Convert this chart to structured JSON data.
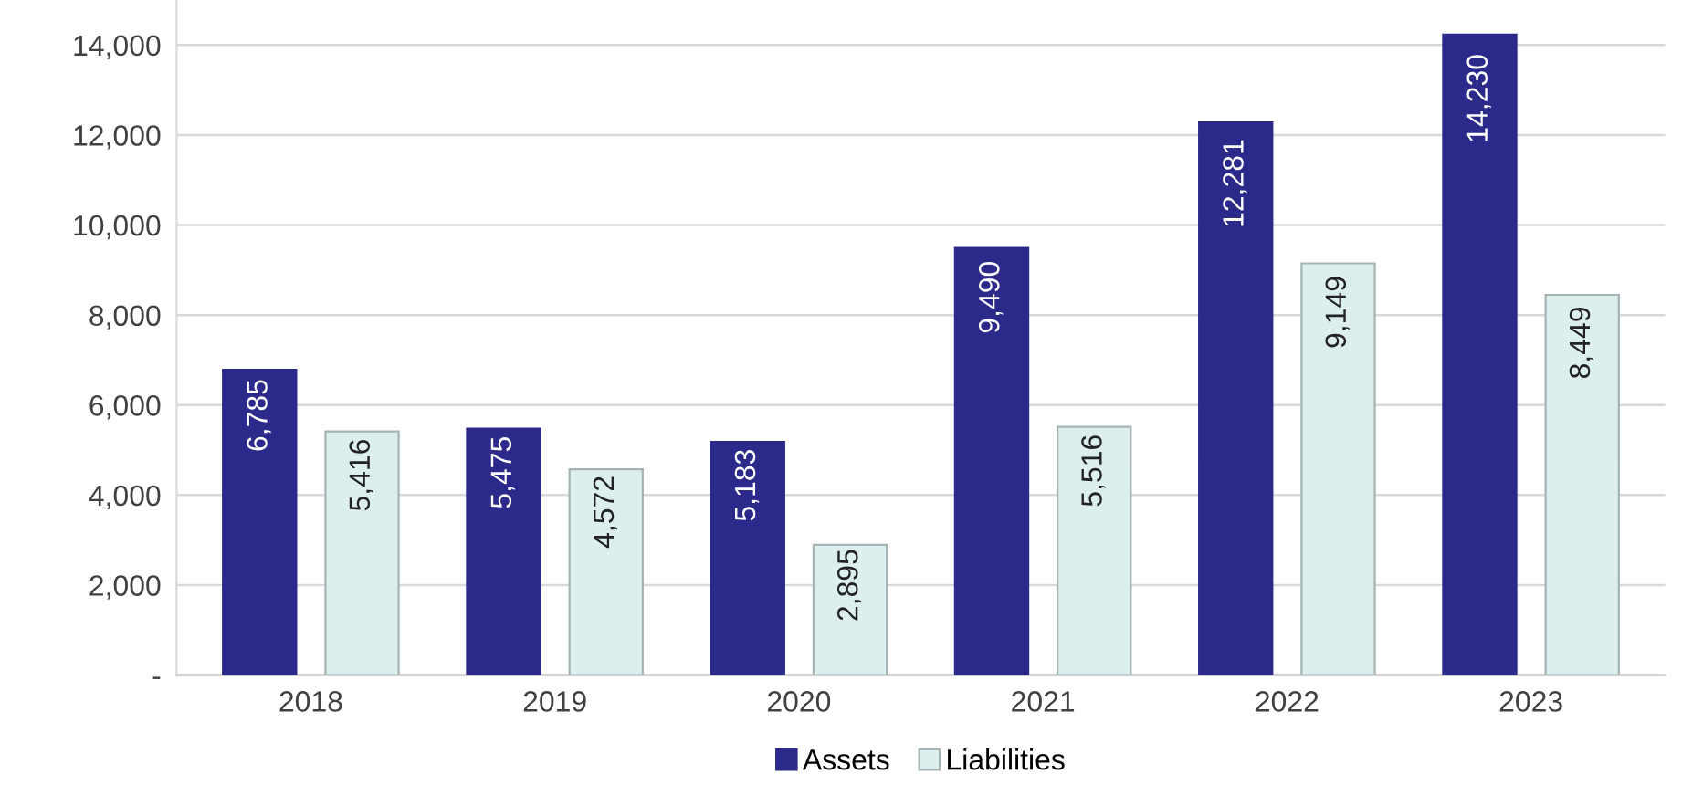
{
  "chart_data": {
    "type": "bar",
    "categories": [
      "2018",
      "2019",
      "2020",
      "2021",
      "2022",
      "2023"
    ],
    "series": [
      {
        "name": "Assets",
        "color": "#2b2a8a",
        "values": [
          6785,
          5475,
          5183,
          9490,
          12281,
          14230
        ],
        "value_labels": [
          "6,785",
          "5,475",
          "5,183",
          "9,490",
          "12,281",
          "14,230"
        ]
      },
      {
        "name": "Liabilities",
        "color": "#dcefee",
        "values": [
          5416,
          4572,
          2895,
          5516,
          9149,
          8449
        ],
        "value_labels": [
          "5,416",
          "4,572",
          "2,895",
          "5,516",
          "9,149",
          "8,449"
        ]
      }
    ],
    "ylim": [
      0,
      15000
    ],
    "yticks": [
      {
        "value": 0,
        "label": "-"
      },
      {
        "value": 2000,
        "label": "2,000"
      },
      {
        "value": 4000,
        "label": "4,000"
      },
      {
        "value": 6000,
        "label": "6,000"
      },
      {
        "value": 8000,
        "label": "8,000"
      },
      {
        "value": 10000,
        "label": "10,000"
      },
      {
        "value": 12000,
        "label": "12,000"
      },
      {
        "value": 14000,
        "label": "14,000"
      }
    ],
    "grid": "y",
    "legend": "bottom"
  }
}
